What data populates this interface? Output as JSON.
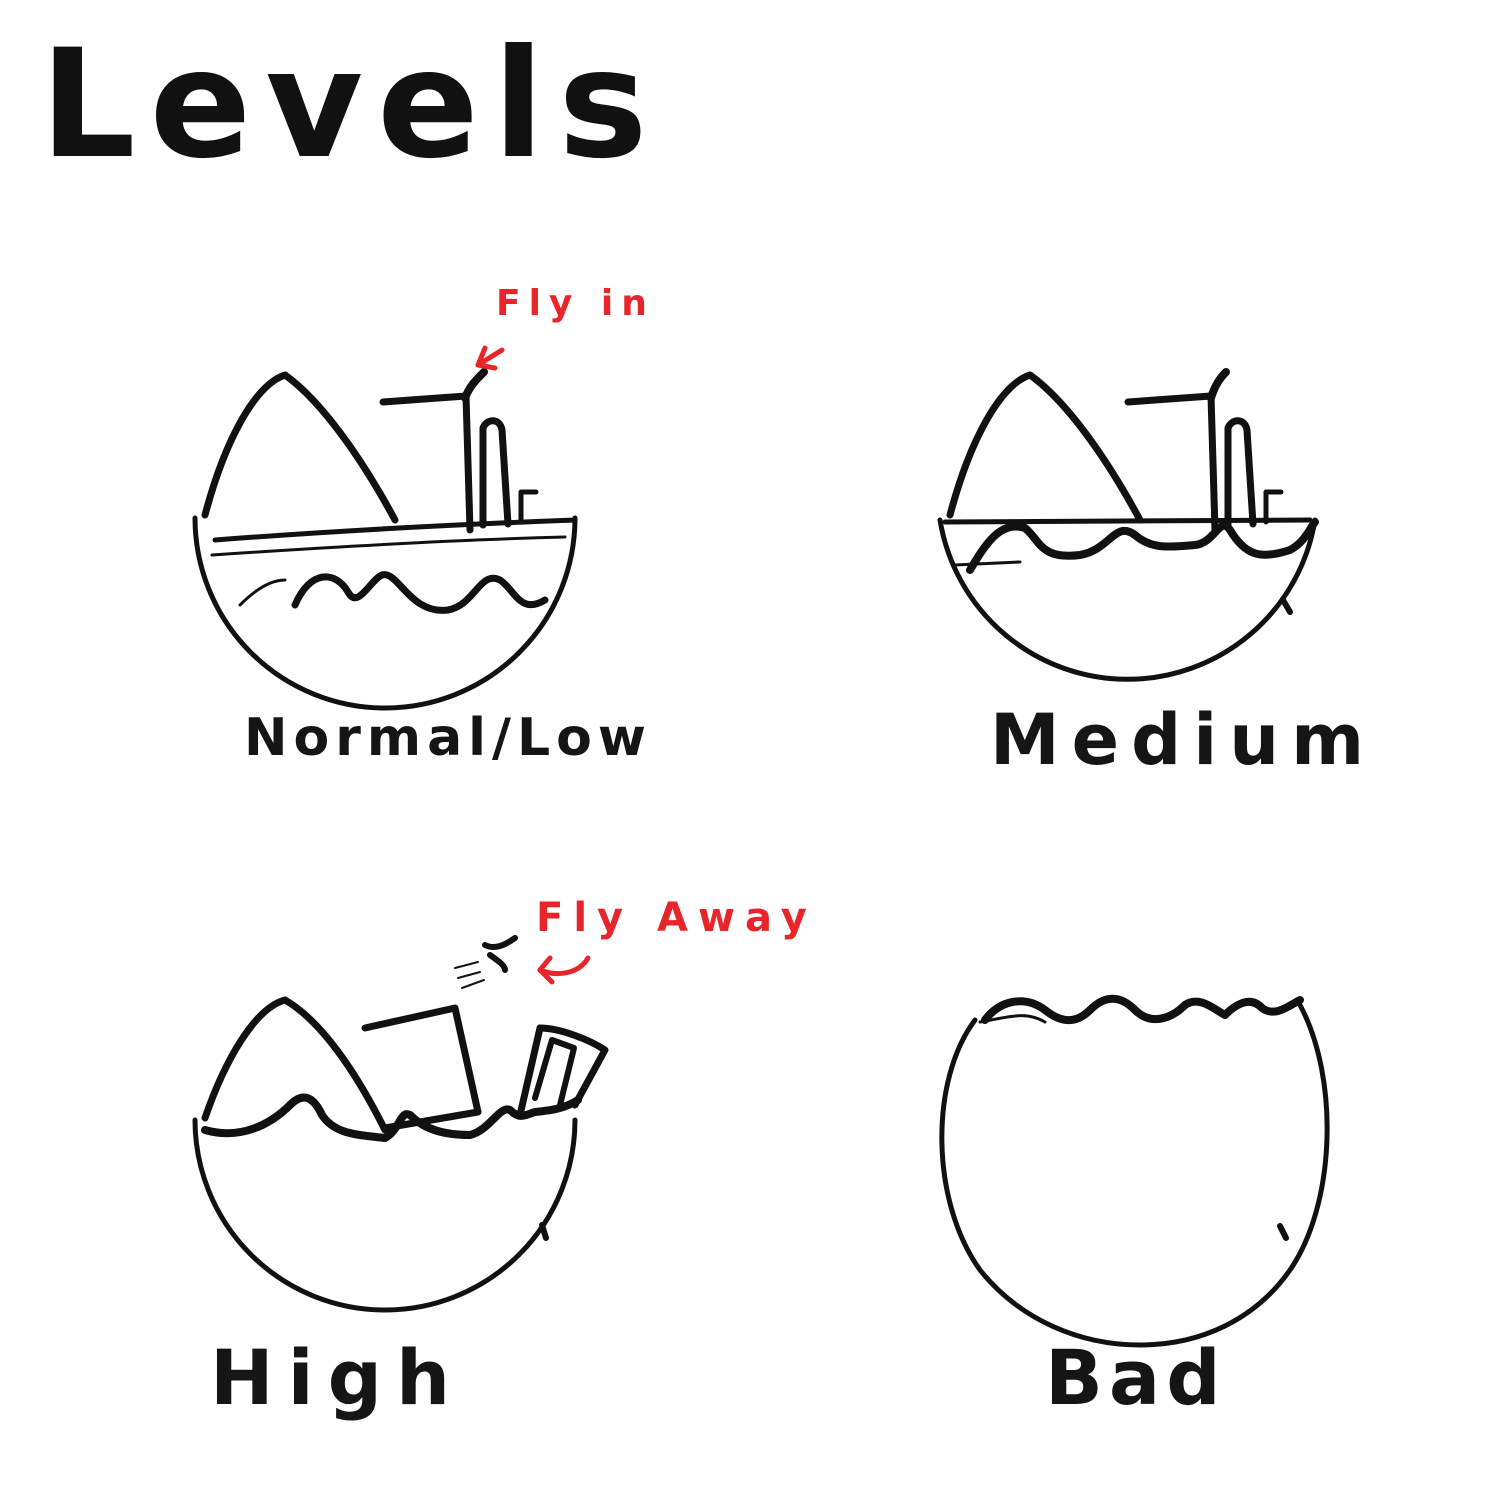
{
  "title": "Levels",
  "colors": {
    "ink": "#111111",
    "annotation": "#e8252a",
    "background": "#ffffff"
  },
  "levels": {
    "normal": {
      "label": "Normal/Low"
    },
    "medium": {
      "label": "Medium"
    },
    "high": {
      "label": "High"
    },
    "bad": {
      "label": "Bad"
    }
  },
  "annotations": {
    "fly_in": "Fly in",
    "fly_away": "Fly Away"
  }
}
